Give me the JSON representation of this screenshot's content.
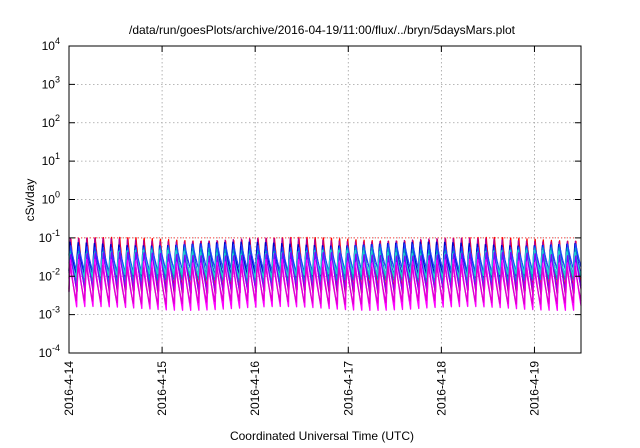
{
  "chart_data": {
    "type": "line",
    "title": "/data/run/goesPlots/archive/2016-04-19/11:00/flux/../bryn/5daysMars.plot",
    "xlabel": "Coordinated Universal Time (UTC)",
    "ylabel": "cSv/day",
    "y_scale": "log",
    "ylim_exponent": [
      -4,
      4
    ],
    "y_ticks": [
      {
        "base": "10",
        "exp": "-4",
        "value": 0.0001
      },
      {
        "base": "10",
        "exp": "-3",
        "value": 0.001
      },
      {
        "base": "10",
        "exp": "-2",
        "value": 0.01
      },
      {
        "base": "10",
        "exp": "-1",
        "value": 0.1
      },
      {
        "base": "10",
        "exp": "0",
        "value": 1
      },
      {
        "base": "10",
        "exp": "1",
        "value": 10
      },
      {
        "base": "10",
        "exp": "2",
        "value": 100
      },
      {
        "base": "10",
        "exp": "3",
        "value": 1000
      },
      {
        "base": "10",
        "exp": "4",
        "value": 10000
      }
    ],
    "x_ticks": [
      "2016-4-14",
      "2016-4-15",
      "2016-4-16",
      "2016-4-17",
      "2016-4-18",
      "2016-4-19"
    ],
    "xlim_days": [
      0,
      5.5
    ],
    "grid": true,
    "oscillation_period_days": 0.0875,
    "series": [
      {
        "color": "#ff0000",
        "peak": 0.1,
        "trough": 0.004
      },
      {
        "color": "#b0009a",
        "peak": 0.09,
        "trough": 0.0035
      },
      {
        "color": "#0000c8",
        "peak": 0.075,
        "trough": 0.009
      },
      {
        "color": "#1e40ff",
        "peak": 0.065,
        "trough": 0.012
      },
      {
        "color": "#00a0c8",
        "peak": 0.05,
        "trough": 0.007
      },
      {
        "color": "#20d0d0",
        "peak": 0.045,
        "trough": 0.01
      },
      {
        "color": "#8000ff",
        "peak": 0.04,
        "trough": 0.004
      },
      {
        "color": "#ff00ff",
        "peak": 0.025,
        "trough": 0.0014
      },
      {
        "color": "#e000d0",
        "peak": 0.02,
        "trough": 0.002
      }
    ]
  }
}
